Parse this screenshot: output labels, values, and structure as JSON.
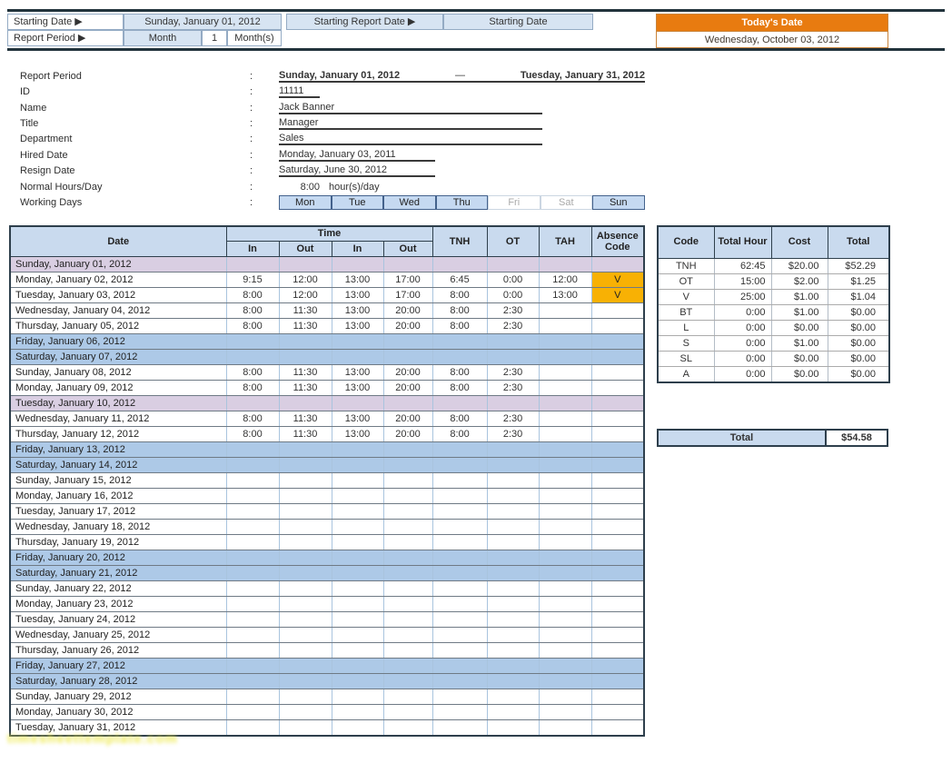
{
  "header": {
    "starting_date_label": "Starting Date ▶",
    "starting_date_value": "Sunday, January 01, 2012",
    "starting_report_date_label": "Starting Report Date ▶",
    "starting_report_date_value": "Starting Date",
    "report_period_label": "Report Period ▶",
    "report_period_unit": "Month",
    "report_period_count": "1",
    "report_period_suffix": "Month(s)",
    "todays_date_label": "Today's Date",
    "todays_date_value": "Wednesday, October 03, 2012"
  },
  "details": {
    "report_period": {
      "label": "Report Period",
      "colon": ":",
      "from": "Sunday, January 01, 2012",
      "dash": "—",
      "to": "Tuesday, January 31, 2012"
    },
    "id": {
      "label": "ID",
      "colon": ":",
      "value": "11111"
    },
    "name": {
      "label": "Name",
      "colon": ":",
      "value": "Jack Banner"
    },
    "title": {
      "label": "Title",
      "colon": ":",
      "value": "Manager"
    },
    "department": {
      "label": "Department",
      "colon": ":",
      "value": "Sales"
    },
    "hired_date": {
      "label": "Hired Date",
      "colon": ":",
      "value": "Monday, January 03, 2011"
    },
    "resign_date": {
      "label": "Resign Date",
      "colon": ":",
      "value": "Saturday, June 30, 2012"
    },
    "normal_hours": {
      "label": "Normal Hours/Day",
      "colon": ":",
      "value": "8:00",
      "suffix": "hour(s)/day"
    },
    "working_days": {
      "label": "Working Days",
      "colon": ":",
      "days": [
        {
          "label": "Mon",
          "active": true
        },
        {
          "label": "Tue",
          "active": true
        },
        {
          "label": "Wed",
          "active": true
        },
        {
          "label": "Thu",
          "active": true
        },
        {
          "label": "Fri",
          "active": false
        },
        {
          "label": "Sat",
          "active": false
        },
        {
          "label": "Sun",
          "active": true
        }
      ]
    }
  },
  "timesheet": {
    "headers": {
      "date": "Date",
      "time": "Time",
      "in1": "In",
      "out1": "Out",
      "in2": "In",
      "out2": "Out",
      "tnh": "TNH",
      "ot": "OT",
      "tah": "TAH",
      "absence_line1": "Absence",
      "absence_line2": "Code"
    },
    "rows": [
      {
        "date": "Sunday, January 01, 2012",
        "type": "holiday",
        "cells": [
          "",
          "",
          "",
          "",
          "",
          "",
          "",
          ""
        ]
      },
      {
        "date": "Monday, January 02, 2012",
        "type": "normal",
        "cells": [
          "9:15",
          "12:00",
          "13:00",
          "17:00",
          "6:45",
          "0:00",
          "12:00",
          "V"
        ]
      },
      {
        "date": "Tuesday, January 03, 2012",
        "type": "normal",
        "cells": [
          "8:00",
          "12:00",
          "13:00",
          "17:00",
          "8:00",
          "0:00",
          "13:00",
          "V"
        ]
      },
      {
        "date": "Wednesday, January 04, 2012",
        "type": "normal",
        "cells": [
          "8:00",
          "11:30",
          "13:00",
          "20:00",
          "8:00",
          "2:30",
          "",
          ""
        ]
      },
      {
        "date": "Thursday, January 05, 2012",
        "type": "normal",
        "cells": [
          "8:00",
          "11:30",
          "13:00",
          "20:00",
          "8:00",
          "2:30",
          "",
          ""
        ]
      },
      {
        "date": "Friday, January 06, 2012",
        "type": "weekend",
        "cells": [
          "",
          "",
          "",
          "",
          "",
          "",
          "",
          ""
        ]
      },
      {
        "date": "Saturday, January 07, 2012",
        "type": "weekend",
        "cells": [
          "",
          "",
          "",
          "",
          "",
          "",
          "",
          ""
        ]
      },
      {
        "date": "Sunday, January 08, 2012",
        "type": "normal",
        "cells": [
          "8:00",
          "11:30",
          "13:00",
          "20:00",
          "8:00",
          "2:30",
          "",
          ""
        ]
      },
      {
        "date": "Monday, January 09, 2012",
        "type": "normal",
        "cells": [
          "8:00",
          "11:30",
          "13:00",
          "20:00",
          "8:00",
          "2:30",
          "",
          ""
        ]
      },
      {
        "date": "Tuesday, January 10, 2012",
        "type": "holiday",
        "cells": [
          "",
          "",
          "",
          "",
          "",
          "",
          "",
          ""
        ]
      },
      {
        "date": "Wednesday, January 11, 2012",
        "type": "normal",
        "cells": [
          "8:00",
          "11:30",
          "13:00",
          "20:00",
          "8:00",
          "2:30",
          "",
          ""
        ]
      },
      {
        "date": "Thursday, January 12, 2012",
        "type": "normal",
        "cells": [
          "8:00",
          "11:30",
          "13:00",
          "20:00",
          "8:00",
          "2:30",
          "",
          ""
        ]
      },
      {
        "date": "Friday, January 13, 2012",
        "type": "weekend",
        "cells": [
          "",
          "",
          "",
          "",
          "",
          "",
          "",
          ""
        ]
      },
      {
        "date": "Saturday, January 14, 2012",
        "type": "weekend",
        "cells": [
          "",
          "",
          "",
          "",
          "",
          "",
          "",
          ""
        ]
      },
      {
        "date": "Sunday, January 15, 2012",
        "type": "normal",
        "cells": [
          "",
          "",
          "",
          "",
          "",
          "",
          "",
          ""
        ]
      },
      {
        "date": "Monday, January 16, 2012",
        "type": "normal",
        "cells": [
          "",
          "",
          "",
          "",
          "",
          "",
          "",
          ""
        ]
      },
      {
        "date": "Tuesday, January 17, 2012",
        "type": "normal",
        "cells": [
          "",
          "",
          "",
          "",
          "",
          "",
          "",
          ""
        ]
      },
      {
        "date": "Wednesday, January 18, 2012",
        "type": "normal",
        "cells": [
          "",
          "",
          "",
          "",
          "",
          "",
          "",
          ""
        ]
      },
      {
        "date": "Thursday, January 19, 2012",
        "type": "normal",
        "cells": [
          "",
          "",
          "",
          "",
          "",
          "",
          "",
          ""
        ]
      },
      {
        "date": "Friday, January 20, 2012",
        "type": "weekend",
        "cells": [
          "",
          "",
          "",
          "",
          "",
          "",
          "",
          ""
        ]
      },
      {
        "date": "Saturday, January 21, 2012",
        "type": "weekend",
        "cells": [
          "",
          "",
          "",
          "",
          "",
          "",
          "",
          ""
        ]
      },
      {
        "date": "Sunday, January 22, 2012",
        "type": "normal",
        "cells": [
          "",
          "",
          "",
          "",
          "",
          "",
          "",
          ""
        ]
      },
      {
        "date": "Monday, January 23, 2012",
        "type": "normal",
        "cells": [
          "",
          "",
          "",
          "",
          "",
          "",
          "",
          ""
        ]
      },
      {
        "date": "Tuesday, January 24, 2012",
        "type": "normal",
        "cells": [
          "",
          "",
          "",
          "",
          "",
          "",
          "",
          ""
        ]
      },
      {
        "date": "Wednesday, January 25, 2012",
        "type": "normal",
        "cells": [
          "",
          "",
          "",
          "",
          "",
          "",
          "",
          ""
        ]
      },
      {
        "date": "Thursday, January 26, 2012",
        "type": "normal",
        "cells": [
          "",
          "",
          "",
          "",
          "",
          "",
          "",
          ""
        ]
      },
      {
        "date": "Friday, January 27, 2012",
        "type": "weekend",
        "cells": [
          "",
          "",
          "",
          "",
          "",
          "",
          "",
          ""
        ]
      },
      {
        "date": "Saturday, January 28, 2012",
        "type": "weekend",
        "cells": [
          "",
          "",
          "",
          "",
          "",
          "",
          "",
          ""
        ]
      },
      {
        "date": "Sunday, January 29, 2012",
        "type": "normal",
        "cells": [
          "",
          "",
          "",
          "",
          "",
          "",
          "",
          ""
        ]
      },
      {
        "date": "Monday, January 30, 2012",
        "type": "normal",
        "cells": [
          "",
          "",
          "",
          "",
          "",
          "",
          "",
          ""
        ]
      },
      {
        "date": "Tuesday, January 31, 2012",
        "type": "normal",
        "cells": [
          "",
          "",
          "",
          "",
          "",
          "",
          "",
          ""
        ]
      }
    ]
  },
  "summary": {
    "headers": [
      "Code",
      "Total Hour",
      "Cost",
      "Total"
    ],
    "rows": [
      {
        "code": "TNH",
        "total_hour": "62:45",
        "cost": "$20.00",
        "total": "$52.29"
      },
      {
        "code": "OT",
        "total_hour": "15:00",
        "cost": "$2.00",
        "total": "$1.25"
      },
      {
        "code": "V",
        "total_hour": "25:00",
        "cost": "$1.00",
        "total": "$1.04"
      },
      {
        "code": "BT",
        "total_hour": "0:00",
        "cost": "$1.00",
        "total": "$0.00"
      },
      {
        "code": "L",
        "total_hour": "0:00",
        "cost": "$0.00",
        "total": "$0.00"
      },
      {
        "code": "S",
        "total_hour": "0:00",
        "cost": "$1.00",
        "total": "$0.00"
      },
      {
        "code": "SL",
        "total_hour": "0:00",
        "cost": "$0.00",
        "total": "$0.00"
      },
      {
        "code": "A",
        "total_hour": "0:00",
        "cost": "$0.00",
        "total": "$0.00"
      }
    ],
    "total_label": "Total",
    "total_value": "$54.58"
  },
  "watermark": "timesheettemplate.com",
  "colors": {
    "rule": "#22333C",
    "header_fill": "#D7E4F2",
    "table_header_fill": "#C9DAEE",
    "weekend_row": "#ADC9E7",
    "holiday_row": "#D9CEE2",
    "absence_fill": "#F8B104",
    "today_header_fill": "#E87B10",
    "grid_dark": "#2E3F4C",
    "grid_light": "#A9C4DE"
  }
}
